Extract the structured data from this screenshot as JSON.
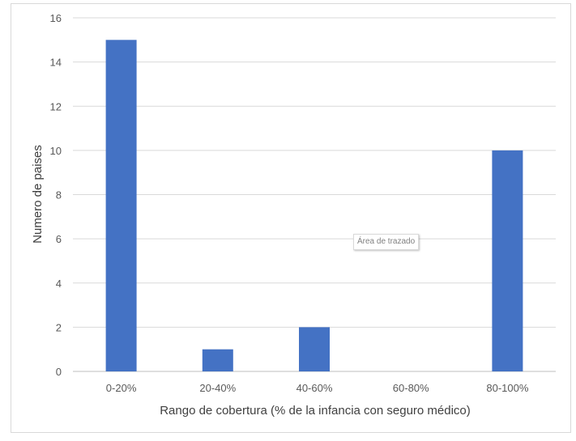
{
  "chart_data": {
    "type": "bar",
    "categories": [
      "0-20%",
      "20-40%",
      "40-60%",
      "60-80%",
      "80-100%"
    ],
    "values": [
      15,
      1,
      2,
      0,
      10
    ],
    "xlabel": "Rango de cobertura (% de la infancia con seguro médico)",
    "ylabel": "Numero de paises",
    "ylim": [
      0,
      16
    ],
    "yticks": [
      "0",
      "2",
      "4",
      "6",
      "8",
      "10",
      "12",
      "14",
      "16"
    ],
    "grid": true,
    "bar_color": "#4472C4"
  },
  "tooltip": "Área de trazado"
}
